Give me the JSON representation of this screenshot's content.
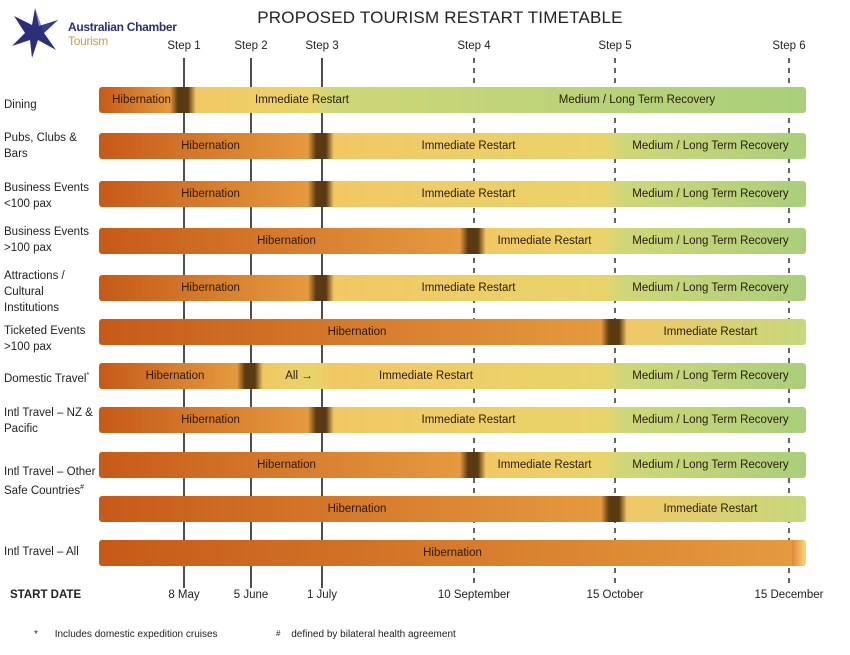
{
  "logo": {
    "line1": "Australian Chamber",
    "line2": "Tourism",
    "icon": "star-logo-icon"
  },
  "chart_data": {
    "type": "gantt",
    "title": "PROPOSED TOURISM RESTART TIMETABLE",
    "steps": [
      {
        "label": "Step 1",
        "date": "8 May"
      },
      {
        "label": "Step 2",
        "date": "5 June"
      },
      {
        "label": "Step 3",
        "date": "1 July"
      },
      {
        "label": "Step 4",
        "date": "10 September"
      },
      {
        "label": "Step 5",
        "date": "15 October"
      },
      {
        "label": "Step 6",
        "date": "15 December"
      }
    ],
    "xlabel": "START DATE",
    "rows": [
      {
        "label": "Dining",
        "phases": [
          {
            "name": "Hibernation",
            "start": "",
            "end": "Step 1"
          },
          {
            "name": "Immediate Restart",
            "start": "Step 1",
            "end": "Step 3"
          },
          {
            "name": "Medium / Long Term Recovery",
            "start": "Step 3",
            "end": "Step 6"
          }
        ]
      },
      {
        "label": "Pubs, Clubs & Bars",
        "phases": [
          {
            "name": "Hibernation",
            "start": "",
            "end": "Step 3"
          },
          {
            "name": "Immediate Restart",
            "start": "Step 3",
            "end": "Step 5"
          },
          {
            "name": "Medium / Long Term Recovery",
            "start": "Step 5",
            "end": "Step 6"
          }
        ]
      },
      {
        "label": "Business Events <100 pax",
        "phases": [
          {
            "name": "Hibernation",
            "start": "",
            "end": "Step 3"
          },
          {
            "name": "Immediate Restart",
            "start": "Step 3",
            "end": "Step 5"
          },
          {
            "name": "Medium / Long Term Recovery",
            "start": "Step 5",
            "end": "Step 6"
          }
        ]
      },
      {
        "label": "Business Events >100 pax",
        "phases": [
          {
            "name": "Hibernation",
            "start": "",
            "end": "Step 4"
          },
          {
            "name": "Immediate Restart",
            "start": "Step 4",
            "end": "Step 5"
          },
          {
            "name": "Medium / Long Term Recovery",
            "start": "Step 5",
            "end": "Step 6"
          }
        ]
      },
      {
        "label": "Attractions / Cultural Institutions",
        "phases": [
          {
            "name": "Hibernation",
            "start": "",
            "end": "Step 3"
          },
          {
            "name": "Immediate Restart",
            "start": "Step 3",
            "end": "Step 5"
          },
          {
            "name": "Medium / Long Term Recovery",
            "start": "Step 5",
            "end": "Step 6"
          }
        ]
      },
      {
        "label": "Ticketed Events >100 pax",
        "phases": [
          {
            "name": "Hibernation",
            "start": "",
            "end": "Step 5"
          },
          {
            "name": "Immediate Restart",
            "start": "Step 5",
            "end": "Step 6"
          }
        ]
      },
      {
        "label": "Domestic Travel*",
        "phases": [
          {
            "name": "Hibernation",
            "start": "",
            "end": "Step 2"
          },
          {
            "name": "All →",
            "start": "Step 2",
            "end": "Step 3"
          },
          {
            "name": "Immediate Restart",
            "start": "Step 3",
            "end": "Step 5"
          },
          {
            "name": "Medium / Long Term Recovery",
            "start": "Step 5",
            "end": "Step 6"
          }
        ]
      },
      {
        "label": "Intl Travel – NZ & Pacific",
        "phases": [
          {
            "name": "Hibernation",
            "start": "",
            "end": "Step 3"
          },
          {
            "name": "Immediate Restart",
            "start": "Step 3",
            "end": "Step 5"
          },
          {
            "name": "Medium / Long Term Recovery",
            "start": "Step 5",
            "end": "Step 6"
          }
        ]
      },
      {
        "label": "Intl Travel – Other Safe Countries#",
        "phases": [
          {
            "name": "Hibernation",
            "start": "",
            "end": "Step 4"
          },
          {
            "name": "Immediate Restart",
            "start": "Step 4",
            "end": "Step 5"
          },
          {
            "name": "Medium / Long Term Recovery",
            "start": "Step 5",
            "end": "Step 6"
          }
        ]
      },
      {
        "label": "",
        "phases": [
          {
            "name": "Hibernation",
            "start": "",
            "end": "Step 5"
          },
          {
            "name": "Immediate Restart",
            "start": "Step 5",
            "end": "Step 6"
          }
        ]
      },
      {
        "label": "Intl Travel – All",
        "phases": [
          {
            "name": "Hibernation",
            "start": "",
            "end": "Step 6"
          }
        ]
      }
    ]
  },
  "footnotes": [
    {
      "mark": "*",
      "text": "Includes domestic expedition cruises"
    },
    {
      "mark": "#",
      "text": "defined by bilateral health agreement"
    }
  ],
  "colors": {
    "hibernation": "#c9601e",
    "restart": "#f3cf6a",
    "recovery": "#a9cf7a",
    "transition": "#5a3a12"
  }
}
